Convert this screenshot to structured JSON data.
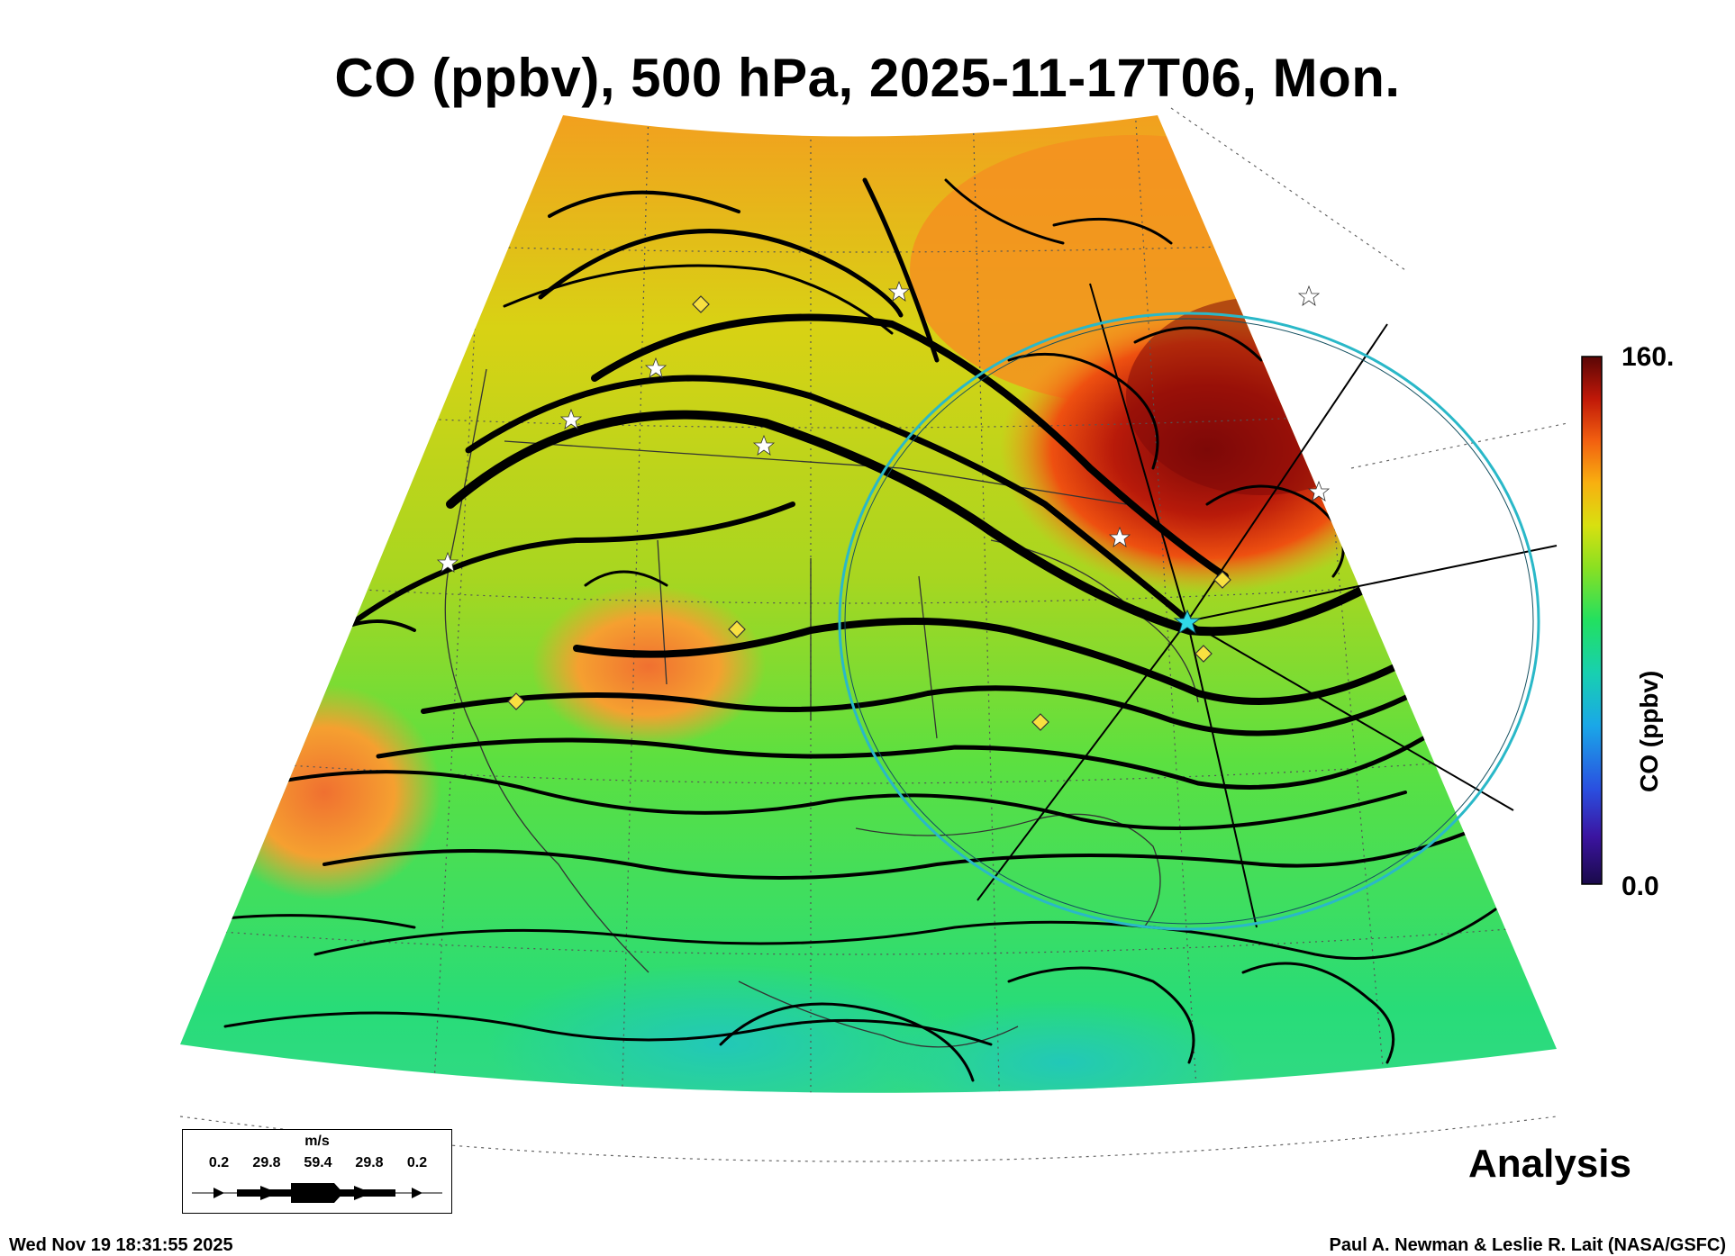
{
  "title": "CO (ppbv), 500 hPa, 2025-11-17T06, Mon.",
  "colorbar": {
    "label": "CO (ppbv)",
    "max_label": "160.",
    "min_label": "0.0",
    "range": [
      0,
      160
    ],
    "colors": [
      "#1a0a4a",
      "#3b14a0",
      "#2a4fe0",
      "#1aa7e8",
      "#18d0b0",
      "#22e060",
      "#8ae022",
      "#d8e010",
      "#f8b010",
      "#f26010",
      "#c01808",
      "#5a0606"
    ]
  },
  "legend": {
    "unit": "m/s",
    "values": [
      "0.2",
      "29.8",
      "59.4",
      "29.8",
      "0.2"
    ]
  },
  "analysis_label": "Analysis",
  "timestamp": "Wed Nov 19 18:31:55 2025",
  "credit": "Paul A. Newman & Leslie R. Lait (NASA/GSFC)",
  "icons": [
    "station-star-icon",
    "station-diamond-icon",
    "center-star-icon"
  ],
  "highlight_color": "#2ab8c8"
}
